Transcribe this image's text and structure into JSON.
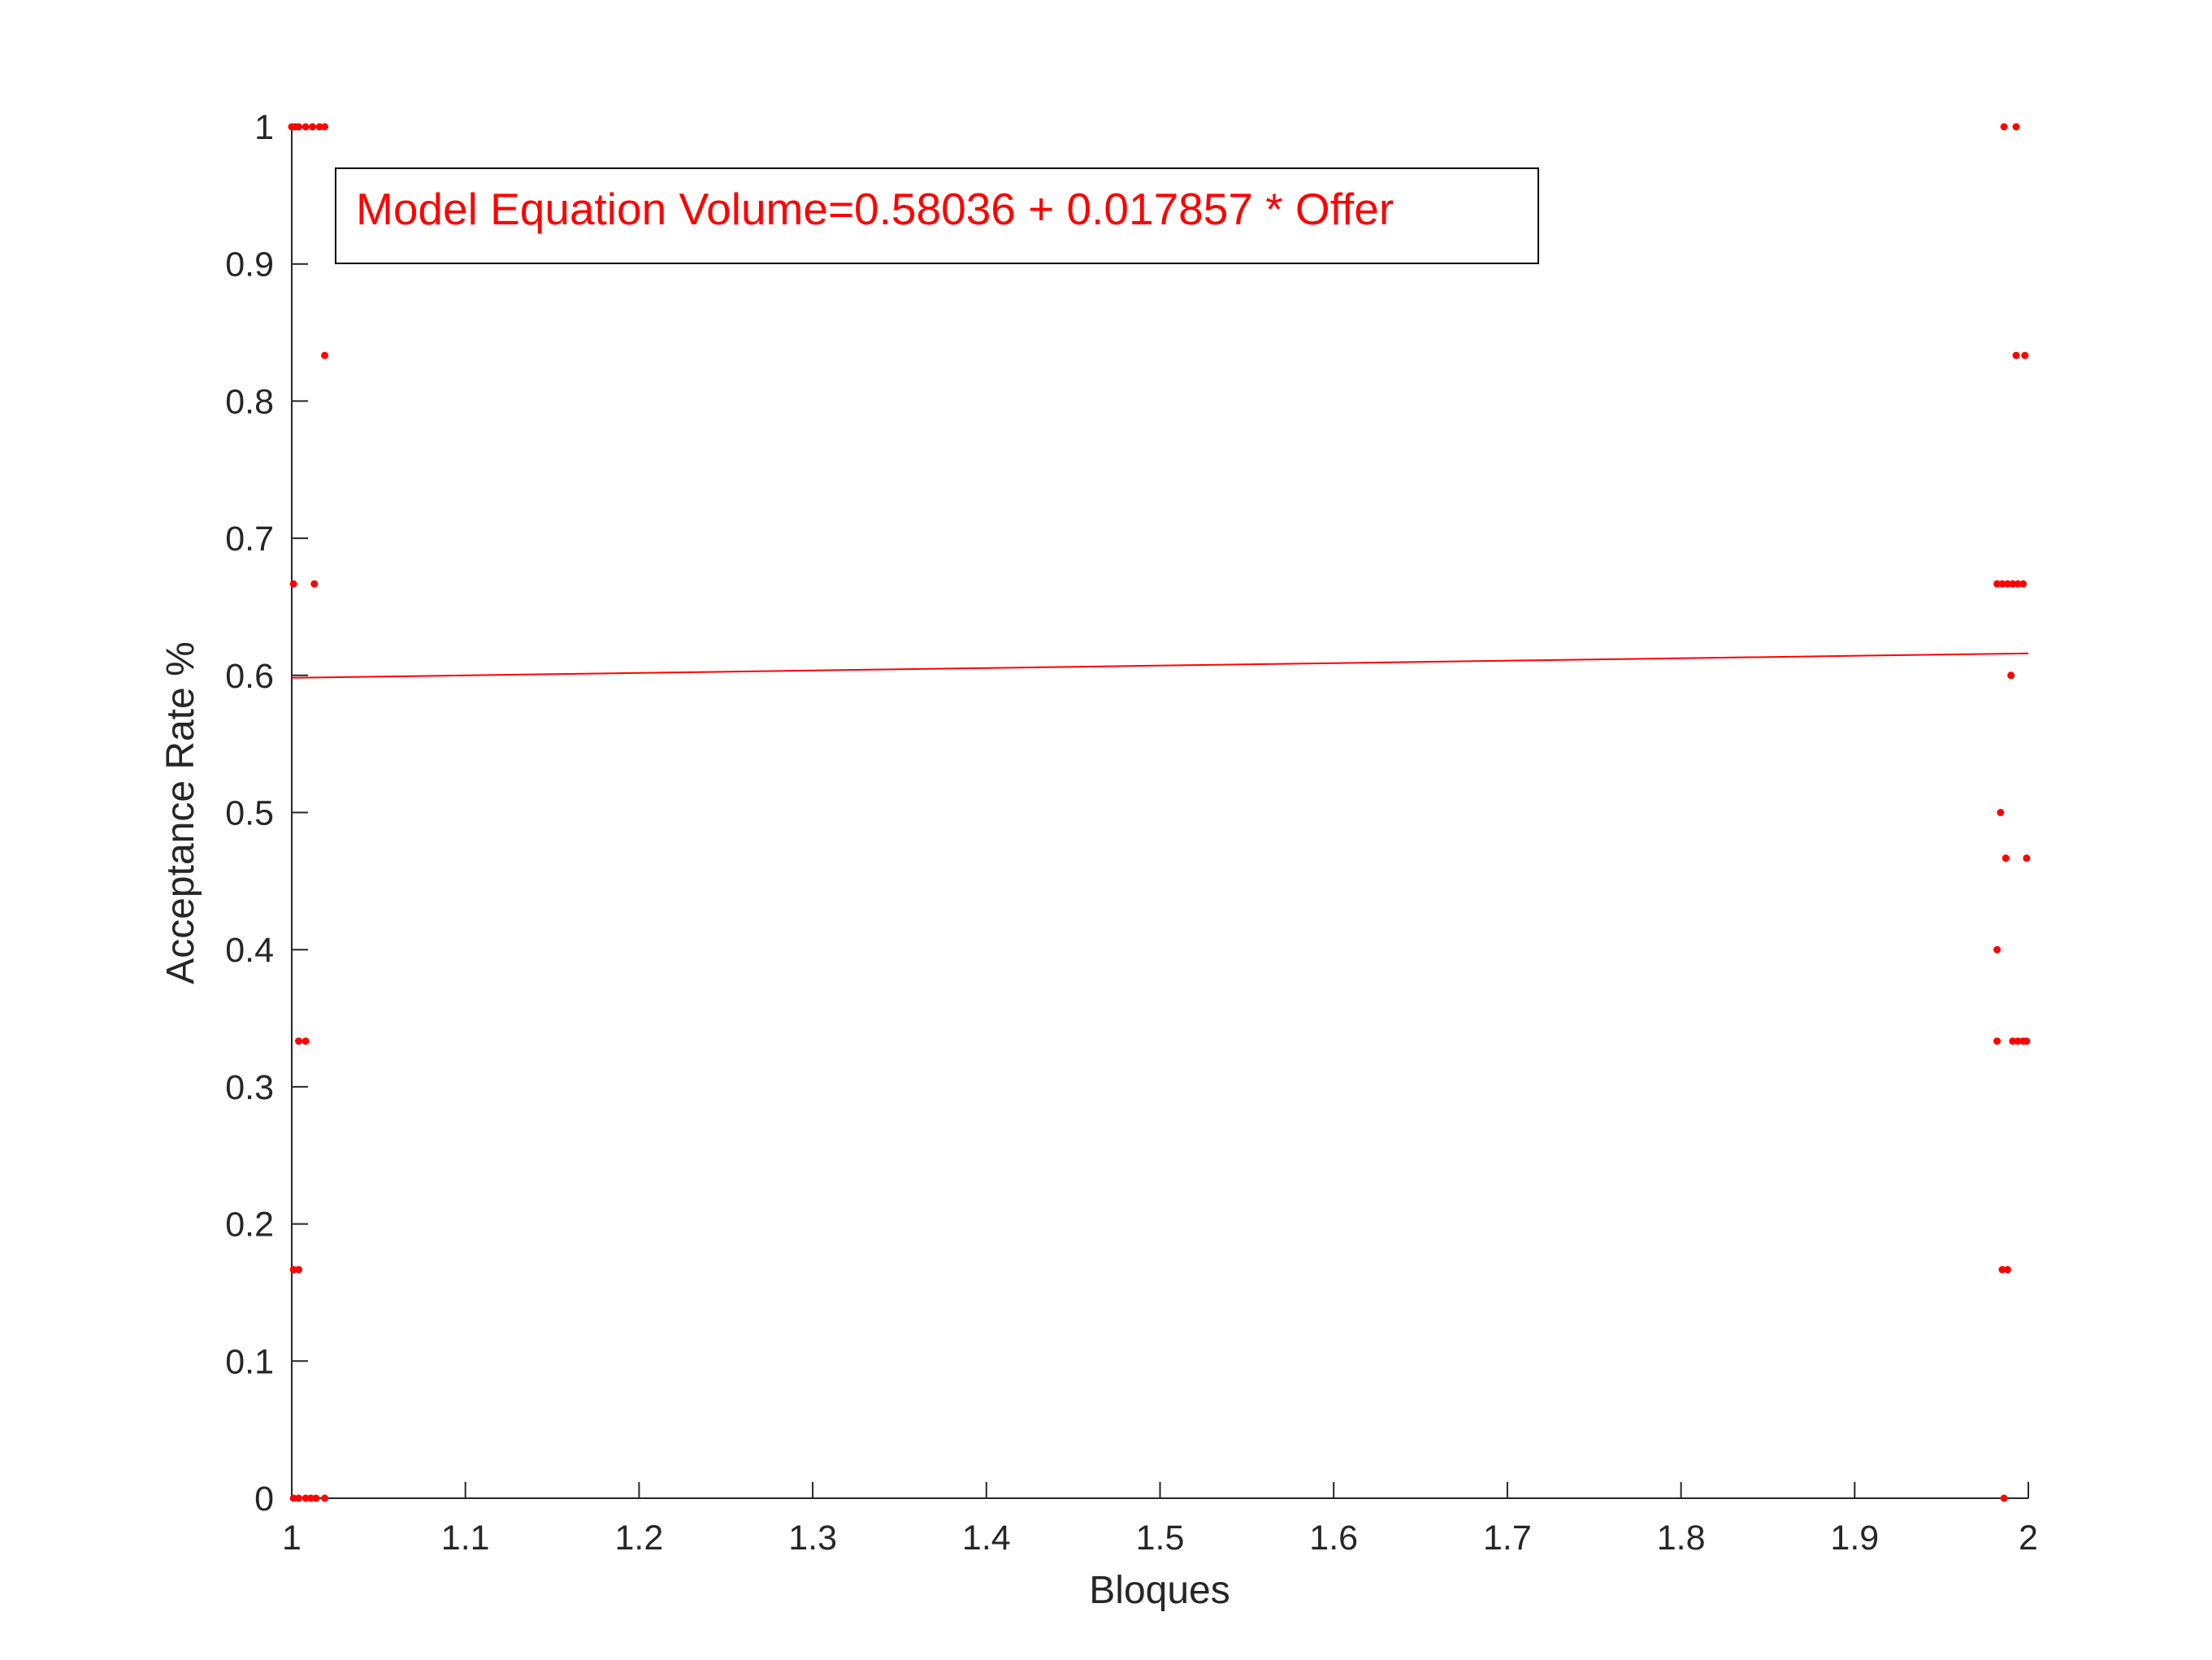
{
  "chart_data": {
    "type": "scatter",
    "title": "",
    "xlabel": "Bloques",
    "ylabel": "Acceptance Rate %",
    "xlim": [
      1,
      2
    ],
    "ylim": [
      0,
      1
    ],
    "x_ticks": [
      1,
      1.1,
      1.2,
      1.3,
      1.4,
      1.5,
      1.6,
      1.7,
      1.8,
      1.9,
      2
    ],
    "x_tick_labels": [
      "1",
      "1.1",
      "1.2",
      "1.3",
      "1.4",
      "1.5",
      "1.6",
      "1.7",
      "1.8",
      "1.9",
      "2"
    ],
    "y_ticks": [
      0,
      0.1,
      0.2,
      0.3,
      0.4,
      0.5,
      0.6,
      0.7,
      0.8,
      0.9,
      1
    ],
    "y_tick_labels": [
      "0",
      "0.1",
      "0.2",
      "0.3",
      "0.4",
      "0.5",
      "0.6",
      "0.7",
      "0.8",
      "0.9",
      "1"
    ],
    "grid": false,
    "colors": {
      "points": "#ff0000",
      "fit_line": "#ff0000",
      "annotation": "#ff0000",
      "axis": "#262626"
    },
    "annotation": "Model Equation Volume=0.58036 + 0.017857 * Offer",
    "fit_line": {
      "x": [
        1,
        2
      ],
      "y": [
        0.59822,
        0.61607
      ]
    },
    "points": [
      [
        1.0,
        1
      ],
      [
        1.002,
        1
      ],
      [
        1.004,
        1
      ],
      [
        1.008,
        1
      ],
      [
        1.012,
        1
      ],
      [
        1.016,
        1
      ],
      [
        1.019,
        1
      ],
      [
        1.019,
        0.8333
      ],
      [
        1.001,
        0.6667
      ],
      [
        1.013,
        0.6667
      ],
      [
        1.004,
        0.3333
      ],
      [
        1.008,
        0.3333
      ],
      [
        1.001,
        0.1667
      ],
      [
        1.004,
        0.1667
      ],
      [
        1.001,
        0
      ],
      [
        1.004,
        0
      ],
      [
        1.008,
        0
      ],
      [
        1.011,
        0
      ],
      [
        1.014,
        0
      ],
      [
        1.019,
        0
      ],
      [
        1.986,
        1
      ],
      [
        1.993,
        1
      ],
      [
        1.993,
        0.8333
      ],
      [
        1.998,
        0.8333
      ],
      [
        1.982,
        0.6667
      ],
      [
        1.985,
        0.6667
      ],
      [
        1.988,
        0.6667
      ],
      [
        1.991,
        0.6667
      ],
      [
        1.994,
        0.6667
      ],
      [
        1.997,
        0.6667
      ],
      [
        1.99,
        0.6
      ],
      [
        1.984,
        0.5
      ],
      [
        1.987,
        0.4667
      ],
      [
        1.999,
        0.4667
      ],
      [
        1.982,
        0.4
      ],
      [
        1.982,
        0.3333
      ],
      [
        1.991,
        0.3333
      ],
      [
        1.994,
        0.3333
      ],
      [
        1.997,
        0.3333
      ],
      [
        1.999,
        0.3333
      ],
      [
        1.985,
        0.1667
      ],
      [
        1.988,
        0.1667
      ],
      [
        1.986,
        0
      ]
    ]
  }
}
